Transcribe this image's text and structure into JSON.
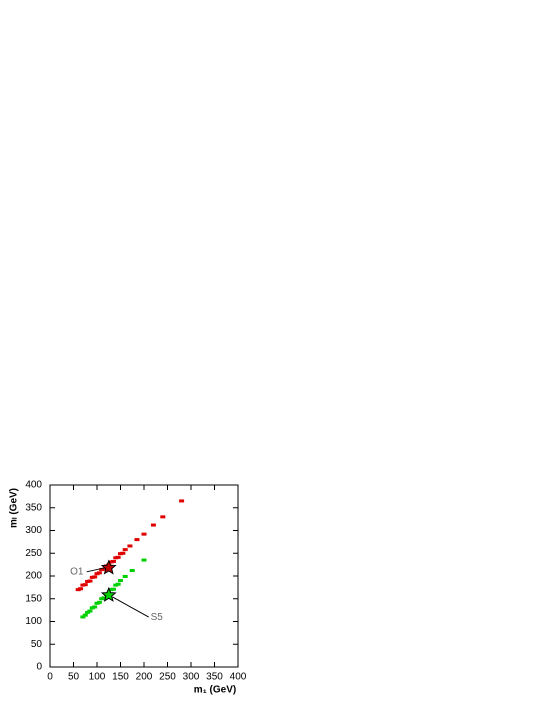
{
  "chart_data": {
    "type": "scatter",
    "xlabel": "m₁ (GeV)",
    "ylabel": "mₗ (GeV)",
    "xlim": [
      0,
      400
    ],
    "ylim": [
      0,
      400
    ],
    "xticks": [
      0,
      50,
      100,
      150,
      200,
      250,
      300,
      350,
      400
    ],
    "yticks": [
      0,
      50,
      100,
      150,
      200,
      250,
      300,
      350,
      400
    ],
    "series": [
      {
        "color": "#e00000",
        "x": [
          60,
          65,
          70,
          75,
          80,
          85,
          90,
          95,
          100,
          105,
          110,
          115,
          120,
          125,
          130,
          135,
          140,
          145,
          150,
          155,
          160,
          170,
          185,
          200,
          220,
          240,
          280
        ],
        "y": [
          170,
          172,
          180,
          181,
          188,
          189,
          197,
          198,
          205,
          207,
          214,
          215,
          222,
          224,
          231,
          232,
          240,
          241,
          249,
          250,
          258,
          266,
          280,
          292,
          312,
          330,
          365
        ]
      },
      {
        "color": "#00d000",
        "x": [
          70,
          75,
          80,
          85,
          90,
          95,
          100,
          105,
          110,
          115,
          120,
          125,
          130,
          135,
          140,
          145,
          150,
          160,
          175,
          200
        ],
        "y": [
          110,
          114,
          120,
          123,
          130,
          132,
          140,
          142,
          150,
          152,
          160,
          161,
          170,
          171,
          180,
          182,
          190,
          199,
          212,
          235
        ]
      }
    ],
    "annotations": [
      {
        "text": "O1",
        "x": 125,
        "y": 218,
        "color": "#c00000"
      },
      {
        "text": "S5",
        "x": 125,
        "y": 158,
        "color": "#00d000"
      }
    ]
  }
}
